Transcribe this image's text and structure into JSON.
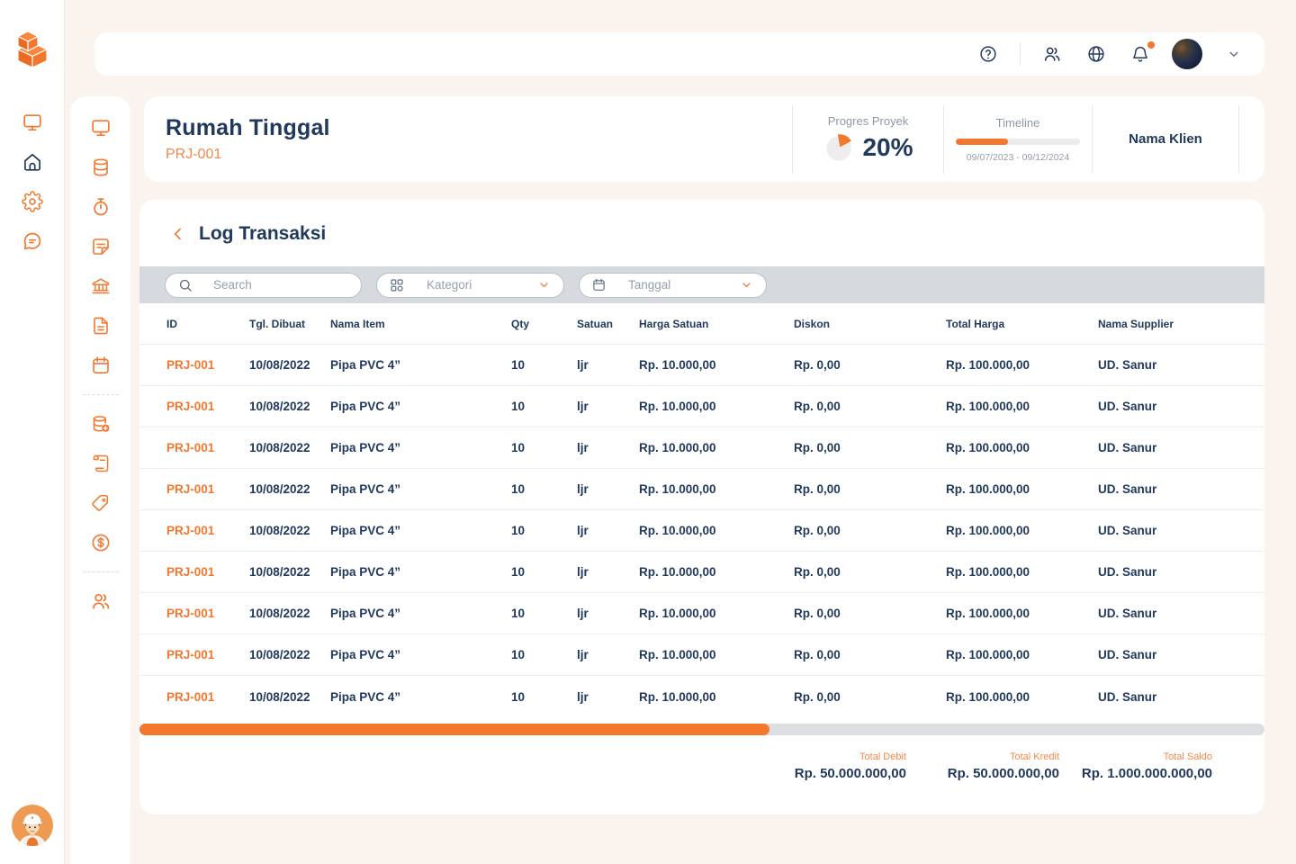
{
  "colors": {
    "accent_orange": "#F4772E",
    "navy": "#21395C",
    "muted_gray": "#8E97A3",
    "filter_bar_bg": "#D6D9DE"
  },
  "topbar": {
    "icons": [
      "help-icon",
      "users-icon",
      "globe-icon",
      "bell-icon"
    ],
    "bell_has_badge": true,
    "avatar": "user-avatar",
    "chevron": "chevron-down-icon"
  },
  "outer_sidebar": {
    "logo": "brand-blocks-logo",
    "items": [
      {
        "name": "workspace",
        "icon": "monitor-icon",
        "color": "orange"
      },
      {
        "name": "home",
        "icon": "home-icon",
        "color": "navy"
      },
      {
        "name": "settings",
        "icon": "gear-icon",
        "color": "orange"
      },
      {
        "name": "messages",
        "icon": "chat-icon",
        "color": "orange"
      }
    ],
    "bottom_avatar": "worker-avatar"
  },
  "inner_sidebar": {
    "items": [
      {
        "name": "dashboard",
        "icon": "monitor-icon"
      },
      {
        "name": "data",
        "icon": "database-icon"
      },
      {
        "name": "time",
        "icon": "stopwatch-icon"
      },
      {
        "name": "notes",
        "icon": "note-icon"
      },
      {
        "name": "bank",
        "icon": "bank-icon"
      },
      {
        "name": "documents",
        "icon": "file-icon"
      },
      {
        "name": "calendar",
        "icon": "calendar-icon"
      },
      {
        "divider": true
      },
      {
        "name": "add-data",
        "icon": "database-add-icon"
      },
      {
        "name": "transactions",
        "icon": "receipt-icon"
      },
      {
        "name": "labels",
        "icon": "tag-icon"
      },
      {
        "name": "finance",
        "icon": "money-icon"
      },
      {
        "divider": true
      },
      {
        "name": "team",
        "icon": "team-icon"
      }
    ]
  },
  "project_header": {
    "title": "Rumah Tinggal",
    "code": "PRJ-001",
    "progress": {
      "label": "Progres Proyek",
      "value": "20%",
      "percent": 20
    },
    "timeline": {
      "label": "Timeline",
      "date_range": "09/07/2023 - 09/12/2024",
      "percent": 42
    },
    "client": {
      "label": "Nama Klien"
    }
  },
  "log": {
    "title": "Log Transaksi",
    "back_icon": "chevron-left-icon",
    "filters": {
      "search_placeholder": "Search",
      "kategori_label": "Kategori",
      "tanggal_label": "Tanggal"
    },
    "table": {
      "columns": [
        "ID",
        "Tgl. Dibuat",
        "Nama Item",
        "Qty",
        "Satuan",
        "Harga Satuan",
        "Diskon",
        "Total Harga",
        "Nama Supplier"
      ],
      "rows": [
        [
          "PRJ-001",
          "10/08/2022",
          "Pipa PVC 4”",
          "10",
          "ljr",
          "Rp. 10.000,00",
          "Rp. 0,00",
          "Rp. 100.000,00",
          "UD. Sanur"
        ],
        [
          "PRJ-001",
          "10/08/2022",
          "Pipa PVC 4”",
          "10",
          "ljr",
          "Rp. 10.000,00",
          "Rp. 0,00",
          "Rp. 100.000,00",
          "UD. Sanur"
        ],
        [
          "PRJ-001",
          "10/08/2022",
          "Pipa PVC 4”",
          "10",
          "ljr",
          "Rp. 10.000,00",
          "Rp. 0,00",
          "Rp. 100.000,00",
          "UD. Sanur"
        ],
        [
          "PRJ-001",
          "10/08/2022",
          "Pipa PVC 4”",
          "10",
          "ljr",
          "Rp. 10.000,00",
          "Rp. 0,00",
          "Rp. 100.000,00",
          "UD. Sanur"
        ],
        [
          "PRJ-001",
          "10/08/2022",
          "Pipa PVC 4”",
          "10",
          "ljr",
          "Rp. 10.000,00",
          "Rp. 0,00",
          "Rp. 100.000,00",
          "UD. Sanur"
        ],
        [
          "PRJ-001",
          "10/08/2022",
          "Pipa PVC 4”",
          "10",
          "ljr",
          "Rp. 10.000,00",
          "Rp. 0,00",
          "Rp. 100.000,00",
          "UD. Sanur"
        ],
        [
          "PRJ-001",
          "10/08/2022",
          "Pipa PVC 4”",
          "10",
          "ljr",
          "Rp. 10.000,00",
          "Rp. 0,00",
          "Rp. 100.000,00",
          "UD. Sanur"
        ],
        [
          "PRJ-001",
          "10/08/2022",
          "Pipa PVC 4”",
          "10",
          "ljr",
          "Rp. 10.000,00",
          "Rp. 0,00",
          "Rp. 100.000,00",
          "UD. Sanur"
        ],
        [
          "PRJ-001",
          "10/08/2022",
          "Pipa PVC 4”",
          "10",
          "ljr",
          "Rp. 10.000,00",
          "Rp. 0,00",
          "Rp. 100.000,00",
          "UD. Sanur"
        ]
      ]
    },
    "scrollbar": {
      "thumb_percent": 56
    },
    "totals": [
      {
        "label": "Total Debit",
        "value": "Rp. 50.000.000,00"
      },
      {
        "label": "Total Kredit",
        "value": "Rp. 50.000.000,00"
      },
      {
        "label": "Total Saldo",
        "value": "Rp. 1.000.000.000,00"
      }
    ]
  }
}
